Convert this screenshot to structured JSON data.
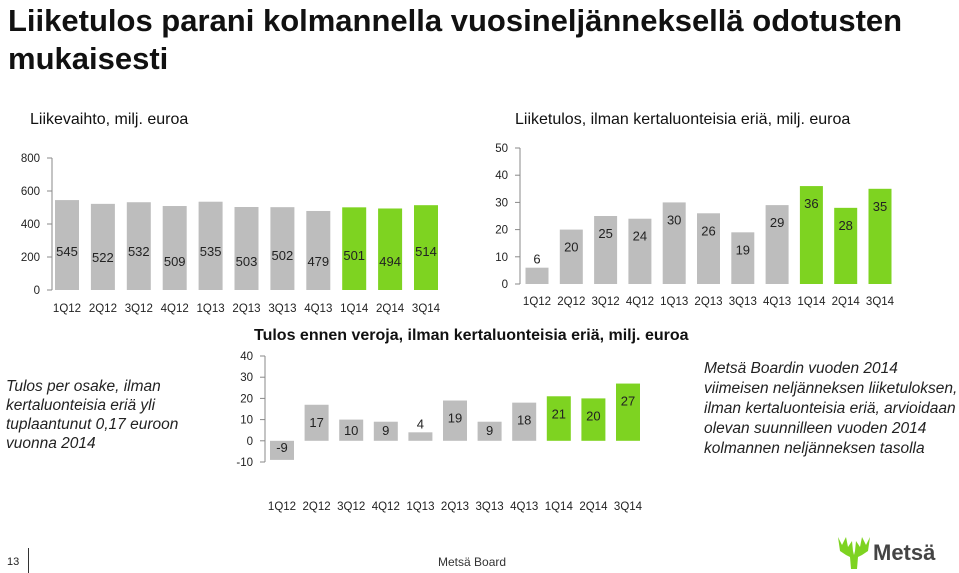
{
  "slide": {
    "title": "Liiketulos parani kolmannella vuosineljänneksellä odotusten mukaisesti",
    "page_number": "13",
    "footer": "Metsä Board",
    "logo_text": "Metsä",
    "note_left": "Tulos per osake, ilman kertaluonteisia eriä yli tuplaantunut 0,17 euroon vuonna 2014",
    "note_right": "Metsä Boardin vuoden 2014 viimeisen neljänneksen liiketuloksen, ilman kertaluonteisia eriä, arvioidaan olevan suunnilleen vuoden 2014 kolmannen neljänneksen tasolla"
  },
  "colors": {
    "gray": "#bdbdbd",
    "green": "#7ed321",
    "axis": "#888888"
  },
  "chart_data": [
    {
      "type": "bar",
      "title": "Liikevaihto, milj. euroa",
      "categories": [
        "1Q12",
        "2Q12",
        "3Q12",
        "4Q12",
        "1Q13",
        "2Q13",
        "3Q13",
        "4Q13",
        "1Q14",
        "2Q14",
        "3Q14"
      ],
      "values": [
        545,
        522,
        532,
        509,
        535,
        503,
        502,
        479,
        501,
        494,
        514
      ],
      "highlight": [
        false,
        false,
        false,
        false,
        false,
        false,
        false,
        false,
        true,
        true,
        true
      ],
      "ylim": [
        0,
        800
      ],
      "yticks": [
        "0",
        "200",
        "400",
        "600",
        "800"
      ],
      "xlabel": "",
      "ylabel": ""
    },
    {
      "type": "bar",
      "title": "Liiketulos, ilman kertaluonteisia eriä, milj. euroa",
      "categories": [
        "1Q12",
        "2Q12",
        "3Q12",
        "4Q12",
        "1Q13",
        "2Q13",
        "3Q13",
        "4Q13",
        "1Q14",
        "2Q14",
        "3Q14"
      ],
      "values": [
        6,
        20,
        25,
        24,
        30,
        26,
        19,
        29,
        36,
        28,
        35
      ],
      "highlight": [
        false,
        false,
        false,
        false,
        false,
        false,
        false,
        false,
        true,
        true,
        true
      ],
      "ylim": [
        0,
        50
      ],
      "yticks": [
        "0",
        "10",
        "20",
        "30",
        "40",
        "50"
      ],
      "xlabel": "",
      "ylabel": ""
    },
    {
      "type": "bar",
      "title": "Tulos ennen veroja, ilman kertaluonteisia eriä, milj. euroa",
      "categories": [
        "1Q12",
        "2Q12",
        "3Q12",
        "4Q12",
        "1Q13",
        "2Q13",
        "3Q13",
        "4Q13",
        "1Q14",
        "2Q14",
        "3Q14"
      ],
      "values": [
        -9,
        17,
        10,
        9,
        4,
        19,
        9,
        18,
        21,
        20,
        27
      ],
      "highlight": [
        false,
        false,
        false,
        false,
        false,
        false,
        false,
        false,
        true,
        true,
        true
      ],
      "ylim": [
        -10,
        40
      ],
      "yticks": [
        "-10",
        "0",
        "10",
        "20",
        "30",
        "40"
      ],
      "xlabel": "",
      "ylabel": ""
    }
  ]
}
